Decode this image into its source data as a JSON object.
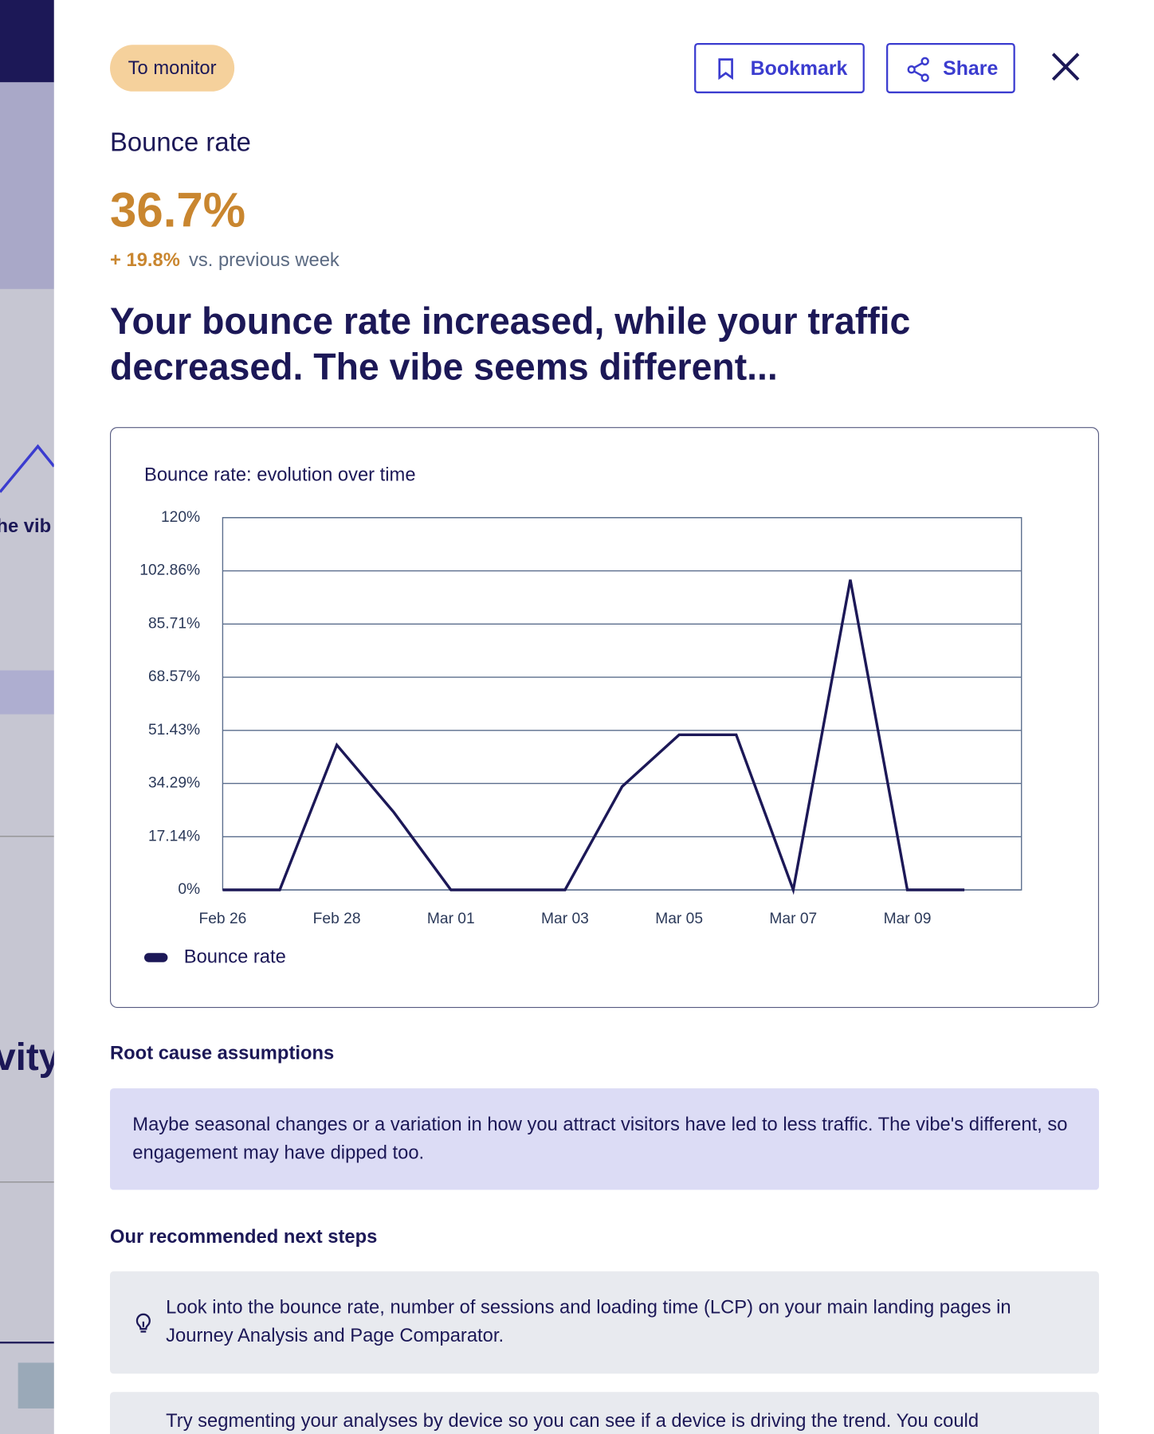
{
  "background": {
    "fragments": [
      "he vib",
      "vity"
    ]
  },
  "header": {
    "badge": "To monitor",
    "bookmark": "Bookmark",
    "share": "Share"
  },
  "metric": {
    "name": "Bounce rate",
    "value": "36.7%",
    "change": "+ 19.8%",
    "comparison": "vs. previous week"
  },
  "headline": "Your bounce rate increased, while your traffic decreased. The vibe seems different...",
  "chart_data": {
    "type": "line",
    "title": "Bounce rate: evolution over time",
    "categories": [
      "Feb 26",
      null,
      "Feb 28",
      null,
      "Mar 01",
      null,
      "Mar 03",
      null,
      "Mar 05",
      null,
      "Mar 07",
      null,
      "Mar 09",
      null
    ],
    "series": [
      {
        "name": "Bounce rate",
        "color": "#1c1857",
        "values": [
          0,
          0,
          46.7,
          25,
          0,
          0,
          0,
          33.3,
          50,
          50,
          0,
          100,
          0,
          0
        ]
      }
    ],
    "ylim": [
      0,
      120
    ],
    "yticks": [
      {
        "value": 0,
        "label": "0%"
      },
      {
        "value": 17.14,
        "label": "17.14%"
      },
      {
        "value": 34.29,
        "label": "34.29%"
      },
      {
        "value": 51.43,
        "label": "51.43%"
      },
      {
        "value": 68.57,
        "label": "68.57%"
      },
      {
        "value": 85.71,
        "label": "85.71%"
      },
      {
        "value": 102.86,
        "label": "102.86%"
      },
      {
        "value": 120,
        "label": "120%"
      }
    ],
    "grid": true
  },
  "root_cause": {
    "title": "Root cause assumptions",
    "text": "Maybe seasonal changes or a variation in how you attract visitors have led to less traffic. The vibe's different, so engagement may have dipped too."
  },
  "next_steps": {
    "title": "Our recommended next steps",
    "items": [
      "Look into the bounce rate, number of sessions and loading time (LCP) on your main landing pages in Journey Analysis and Page Comparator.",
      "Try segmenting your analyses by device so you can see if a device is driving the trend. You could"
    ]
  }
}
